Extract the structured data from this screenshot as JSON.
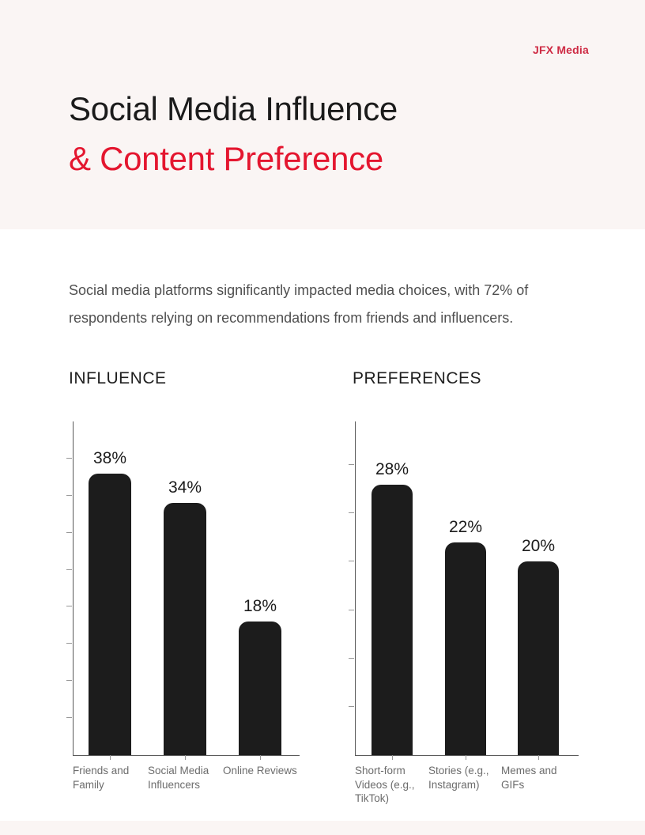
{
  "page": {
    "brand": "JFX Media",
    "title_line1": "Social Media Influence",
    "title_line2": "& Content Preference",
    "intro_lines": [
      "Social media platforms significantly impacted media choices, with 72% of",
      "respondents relying on recommendations from friends and influencers."
    ],
    "colors": {
      "brand_red": "#ce2b44",
      "title_red": "#e4162f",
      "bar_black": "#1c1c1c",
      "band_pink": "#faf5f4"
    }
  },
  "chart_data": [
    {
      "type": "bar",
      "title": "INFLUENCE",
      "categories": [
        "Friends and Family",
        "Social Media Influencers",
        "Online Reviews"
      ],
      "values": [
        38,
        34,
        18
      ],
      "unit": "%",
      "xlabel": "",
      "ylabel": "",
      "ylim": [
        0,
        45
      ],
      "tick_step": 5,
      "grid": false,
      "legend": false,
      "bar_color": "#1c1c1c"
    },
    {
      "type": "bar",
      "title": "PREFERENCES",
      "categories": [
        "Short-form Videos (e.g., TikTok)",
        "Stories (e.g., Instagram)",
        "Memes and GIFs"
      ],
      "values": [
        28,
        22,
        20
      ],
      "unit": "%",
      "xlabel": "",
      "ylabel": "",
      "ylim": [
        0,
        34.5
      ],
      "tick_step": 5,
      "grid": false,
      "legend": false,
      "bar_color": "#1c1c1c"
    }
  ]
}
